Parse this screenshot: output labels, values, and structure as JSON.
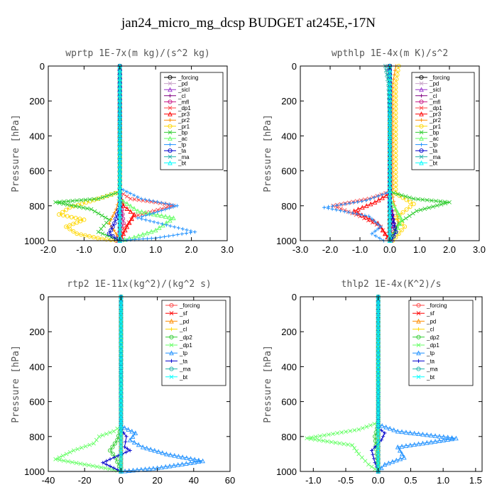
{
  "figure_title": "jan24_micro_mg_dcsp  BUDGET at245E,-17N",
  "chart_data": [
    {
      "type": "line",
      "title": "wprtp  1E-7x(m kg)/(s^2 kg)",
      "ylabel": "Pressure [hPa]",
      "xlim": [
        -2.0,
        3.0
      ],
      "ylim": [
        0,
        1000
      ],
      "xticks": [
        "-2.0",
        "-1.0",
        "0.0",
        "1.0",
        "2.0",
        "3.0"
      ],
      "yticks": [
        "0",
        "200",
        "400",
        "600",
        "800",
        "1000"
      ],
      "legend_position": "top-right",
      "series": [
        {
          "name": "_forcing",
          "color": "#000000",
          "x": [
            0,
            0,
            0,
            0,
            0
          ],
          "y": [
            0,
            250,
            500,
            750,
            1000
          ]
        },
        {
          "name": "_pd",
          "color": "#c8a2c8",
          "x": [
            0,
            0,
            0
          ],
          "y": [
            0,
            500,
            1000
          ]
        },
        {
          "name": "_sicl",
          "color": "#9932cc",
          "x": [
            0,
            0,
            0
          ],
          "y": [
            0,
            500,
            1000
          ]
        },
        {
          "name": "_cl",
          "color": "#800080",
          "x": [
            0,
            0,
            0.05,
            -0.05
          ],
          "y": [
            0,
            700,
            850,
            1000
          ]
        },
        {
          "name": "_mfl",
          "color": "#c71585",
          "x": [
            0,
            0,
            0.1,
            -0.1
          ],
          "y": [
            0,
            720,
            900,
            1000
          ]
        },
        {
          "name": "_dp1",
          "color": "#ff4444",
          "x": [
            0,
            0,
            0.3,
            1.0,
            1.5,
            0.4,
            0.1,
            0
          ],
          "y": [
            0,
            720,
            760,
            780,
            800,
            860,
            930,
            1000
          ]
        },
        {
          "name": "_pr3",
          "color": "#ff0000",
          "x": [
            0,
            0,
            0.1,
            0.4,
            0.2,
            0
          ],
          "y": [
            0,
            740,
            800,
            850,
            920,
            1000
          ]
        },
        {
          "name": "_pr2",
          "color": "#ff8c00",
          "x": [
            0,
            0,
            -0.1,
            -0.3,
            -0.1,
            0
          ],
          "y": [
            0,
            740,
            820,
            900,
            960,
            1000
          ]
        },
        {
          "name": "_pr1",
          "color": "#ffd700",
          "x": [
            0,
            0,
            -0.6,
            -1.4,
            -1.7,
            -1.0,
            -1.5,
            -1.2,
            -0.5,
            0
          ],
          "y": [
            0,
            720,
            760,
            810,
            850,
            880,
            920,
            960,
            990,
            1000
          ]
        },
        {
          "name": "_bp",
          "color": "#32cd32",
          "x": [
            0,
            0,
            -0.6,
            -1.8,
            -0.8,
            -0.3,
            -0.6,
            0
          ],
          "y": [
            0,
            720,
            760,
            780,
            820,
            880,
            950,
            1000
          ]
        },
        {
          "name": "_ac",
          "color": "#66ff66",
          "x": [
            0,
            0,
            0.5,
            1.5,
            1.0,
            0.4,
            0
          ],
          "y": [
            0,
            760,
            830,
            870,
            940,
            980,
            1000
          ]
        },
        {
          "name": "_tp",
          "color": "#1e90ff",
          "x": [
            0,
            0,
            0.6,
            1.6,
            0.5,
            2.1,
            1.0,
            0.3,
            0
          ],
          "y": [
            0,
            700,
            760,
            800,
            870,
            950,
            985,
            995,
            1000
          ]
        },
        {
          "name": "_ta",
          "color": "#0000cd",
          "x": [
            0,
            0,
            -0.15,
            -0.3,
            -0.1,
            0
          ],
          "y": [
            0,
            800,
            900,
            960,
            990,
            1000
          ]
        },
        {
          "name": "_ma",
          "color": "#20b2aa",
          "x": [
            0,
            0,
            0
          ],
          "y": [
            0,
            500,
            1000
          ]
        },
        {
          "name": "_bt",
          "color": "#00ffff",
          "x": [
            0,
            0,
            0
          ],
          "y": [
            0,
            500,
            1000
          ]
        }
      ]
    },
    {
      "type": "line",
      "title": "wpthlp  1E-4x(m K)/s^2",
      "ylabel": "Pressure [hPa]",
      "xlim": [
        -3.0,
        3.0
      ],
      "ylim": [
        0,
        1000
      ],
      "xticks": [
        "-3.0",
        "-2.0",
        "-1.0",
        "0.0",
        "1.0",
        "2.0",
        "3.0"
      ],
      "yticks": [
        "0",
        "200",
        "400",
        "600",
        "800",
        "1000"
      ],
      "legend_position": "top-right",
      "series": [
        {
          "name": "_forcing",
          "color": "#000000",
          "x": [
            0,
            0,
            0
          ],
          "y": [
            0,
            500,
            1000
          ]
        },
        {
          "name": "_pd",
          "color": "#c8a2c8",
          "x": [
            -0.1,
            0,
            0
          ],
          "y": [
            0,
            100,
            1000
          ]
        },
        {
          "name": "_sicl",
          "color": "#9932cc",
          "x": [
            0,
            0,
            0
          ],
          "y": [
            0,
            500,
            1000
          ]
        },
        {
          "name": "_cl",
          "color": "#800080",
          "x": [
            0,
            0,
            0.1,
            0.2,
            0
          ],
          "y": [
            0,
            750,
            850,
            950,
            1000
          ]
        },
        {
          "name": "_mfl",
          "color": "#c71585",
          "x": [
            0,
            0,
            0.1,
            0.05,
            0
          ],
          "y": [
            0,
            760,
            880,
            960,
            1000
          ]
        },
        {
          "name": "_dp1",
          "color": "#ff4444",
          "x": [
            0,
            0,
            -0.7,
            -1.9,
            -1.0,
            -0.3,
            0
          ],
          "y": [
            0,
            720,
            760,
            800,
            860,
            920,
            1000
          ]
        },
        {
          "name": "_pr3",
          "color": "#ff0000",
          "x": [
            0,
            0,
            -0.5,
            -1.2,
            -0.4,
            0
          ],
          "y": [
            0,
            730,
            780,
            830,
            900,
            1000
          ]
        },
        {
          "name": "_pr2",
          "color": "#ff8c00",
          "x": [
            0.2,
            0.1,
            0.1,
            0.3,
            0.1,
            0
          ],
          "y": [
            0,
            100,
            750,
            900,
            960,
            1000
          ]
        },
        {
          "name": "_pr1",
          "color": "#ffd700",
          "x": [
            0.3,
            0.2,
            0.2,
            0.8,
            0.2,
            0.5,
            0.3,
            0.1
          ],
          "y": [
            0,
            100,
            730,
            790,
            870,
            920,
            960,
            1000
          ]
        },
        {
          "name": "_bp",
          "color": "#32cd32",
          "x": [
            0,
            0,
            0.8,
            2.0,
            0.9,
            0.3,
            0
          ],
          "y": [
            0,
            720,
            760,
            780,
            830,
            900,
            1000
          ]
        },
        {
          "name": "_ac",
          "color": "#66ff66",
          "x": [
            0,
            0,
            0.4,
            0.2,
            0
          ],
          "y": [
            0,
            760,
            880,
            950,
            1000
          ]
        },
        {
          "name": "_tp",
          "color": "#1e90ff",
          "x": [
            0,
            0,
            -0.8,
            -2.2,
            -0.7,
            -0.3,
            -0.6,
            -0.2
          ],
          "y": [
            0,
            720,
            770,
            810,
            860,
            920,
            960,
            1000
          ]
        },
        {
          "name": "_ta",
          "color": "#0000cd",
          "x": [
            0,
            0,
            0.1,
            0.2,
            0.05
          ],
          "y": [
            0,
            800,
            880,
            950,
            1000
          ]
        },
        {
          "name": "_ma",
          "color": "#20b2aa",
          "x": [
            -0.15,
            -0.05,
            0,
            0
          ],
          "y": [
            0,
            100,
            300,
            1000
          ]
        },
        {
          "name": "_bt",
          "color": "#00ffff",
          "x": [
            0,
            0,
            0
          ],
          "y": [
            0,
            500,
            1000
          ]
        }
      ]
    },
    {
      "type": "line",
      "title": "rtp2  1E-11x(kg^2)/(kg^2 s)",
      "ylabel": "Pressure [hPa]",
      "xlim": [
        -40,
        60
      ],
      "ylim": [
        0,
        1000
      ],
      "xticks": [
        "-40",
        "-20",
        "0",
        "20",
        "40",
        "60"
      ],
      "yticks": [
        "0",
        "200",
        "400",
        "600",
        "800",
        "1000"
      ],
      "legend_position": "top-right",
      "series": [
        {
          "name": "_forcing",
          "color": "#ff4444",
          "x": [
            0,
            0,
            0
          ],
          "y": [
            0,
            500,
            1000
          ]
        },
        {
          "name": "_sf",
          "color": "#ff0000",
          "x": [
            0,
            0,
            0
          ],
          "y": [
            0,
            500,
            1000
          ]
        },
        {
          "name": "_pd",
          "color": "#ff8c00",
          "x": [
            0,
            0,
            0
          ],
          "y": [
            0,
            500,
            1000
          ]
        },
        {
          "name": "_cl",
          "color": "#ffd700",
          "x": [
            0,
            0,
            0
          ],
          "y": [
            0,
            500,
            1000
          ]
        },
        {
          "name": "_dp2",
          "color": "#32cd32",
          "x": [
            0,
            0,
            -2,
            -6,
            -3,
            -1,
            0
          ],
          "y": [
            0,
            750,
            820,
            880,
            920,
            970,
            1000
          ]
        },
        {
          "name": "_dp1",
          "color": "#66ff66",
          "x": [
            0,
            0,
            -4,
            -12,
            -15,
            -26,
            -36,
            -20,
            -4,
            0
          ],
          "y": [
            0,
            740,
            770,
            800,
            840,
            880,
            930,
            960,
            990,
            1000
          ]
        },
        {
          "name": "_tp",
          "color": "#1e90ff",
          "x": [
            0,
            0,
            8,
            5,
            12,
            25,
            45,
            20,
            0
          ],
          "y": [
            0,
            740,
            780,
            820,
            860,
            900,
            940,
            980,
            1000
          ]
        },
        {
          "name": "_ta",
          "color": "#0000cd",
          "x": [
            0,
            0,
            3,
            2,
            5,
            -6,
            -10,
            0
          ],
          "y": [
            0,
            760,
            800,
            860,
            880,
            930,
            950,
            1000
          ]
        },
        {
          "name": "_ma",
          "color": "#20b2aa",
          "x": [
            0,
            0,
            0
          ],
          "y": [
            0,
            500,
            1000
          ]
        },
        {
          "name": "_bt",
          "color": "#00ffff",
          "x": [
            0,
            0,
            0
          ],
          "y": [
            0,
            500,
            1000
          ]
        }
      ]
    },
    {
      "type": "line",
      "title": "thlp2  1E-4x(K^2)/s",
      "ylabel": "Pressure [hPa]",
      "xlim": [
        -1.2,
        1.6
      ],
      "ylim": [
        0,
        1000
      ],
      "xticks": [
        "-1.0",
        "-0.5",
        "0.0",
        "0.5",
        "1.0",
        "1.5"
      ],
      "yticks": [
        "0",
        "200",
        "400",
        "600",
        "800",
        "1000"
      ],
      "legend_position": "top-right",
      "series": [
        {
          "name": "_forcing",
          "color": "#ff4444",
          "x": [
            0,
            0,
            0
          ],
          "y": [
            0,
            500,
            1000
          ]
        },
        {
          "name": "_sf",
          "color": "#ff0000",
          "x": [
            0,
            0,
            0
          ],
          "y": [
            0,
            500,
            1000
          ]
        },
        {
          "name": "_pd",
          "color": "#ff8c00",
          "x": [
            0,
            0,
            0
          ],
          "y": [
            0,
            500,
            1000
          ]
        },
        {
          "name": "_cl",
          "color": "#ffd700",
          "x": [
            0,
            0,
            0
          ],
          "y": [
            0,
            500,
            1000
          ]
        },
        {
          "name": "_dp2",
          "color": "#32cd32",
          "x": [
            0,
            0,
            -0.05,
            -0.02,
            0
          ],
          "y": [
            0,
            730,
            800,
            900,
            1000
          ]
        },
        {
          "name": "_dp1",
          "color": "#66ff66",
          "x": [
            0,
            0,
            -0.3,
            -1.1,
            -0.4,
            -0.3,
            -0.15,
            0
          ],
          "y": [
            0,
            720,
            760,
            810,
            850,
            900,
            960,
            1000
          ]
        },
        {
          "name": "_tp",
          "color": "#1e90ff",
          "x": [
            0,
            0,
            0.3,
            1.2,
            0.3,
            0.4,
            0.1,
            0
          ],
          "y": [
            0,
            730,
            770,
            810,
            860,
            920,
            960,
            1000
          ]
        },
        {
          "name": "_ta",
          "color": "#0000cd",
          "x": [
            0,
            0,
            0.1,
            0.05,
            -0.1,
            -0.05,
            0
          ],
          "y": [
            0,
            750,
            780,
            820,
            880,
            950,
            1000
          ]
        },
        {
          "name": "_ma",
          "color": "#20b2aa",
          "x": [
            0,
            0,
            0
          ],
          "y": [
            0,
            500,
            1000
          ]
        },
        {
          "name": "_bt",
          "color": "#00ffff",
          "x": [
            0,
            0,
            0
          ],
          "y": [
            0,
            500,
            1000
          ]
        }
      ]
    }
  ]
}
